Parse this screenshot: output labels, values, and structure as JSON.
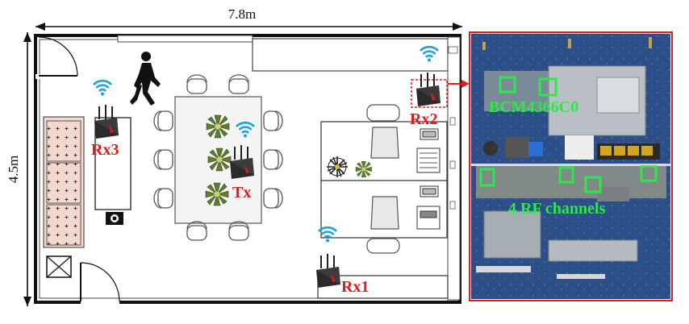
{
  "dimensions": {
    "width": "7.8m",
    "height": "4.5m"
  },
  "devices": {
    "tx": "Tx",
    "rx1": "Rx1",
    "rx2": "Rx2",
    "rx3": "Rx3"
  },
  "photo_labels": {
    "chip": "BCM4366C0",
    "channels": "4 RF channels"
  },
  "colors": {
    "device_label": "#e31a1c",
    "photo_label": "#2ee84a",
    "highlight_box": "#2ee84a",
    "photo_frame": "#e31a1c",
    "wifi": "#1ba1e2",
    "board": "#2b4f86"
  },
  "icons": [
    "wifi-icon",
    "router-icon",
    "person-walking-icon",
    "plant-icon",
    "chair-icon",
    "monitor-icon",
    "printer-icon",
    "sofa-icon",
    "camera-icon",
    "arrow-icon"
  ]
}
